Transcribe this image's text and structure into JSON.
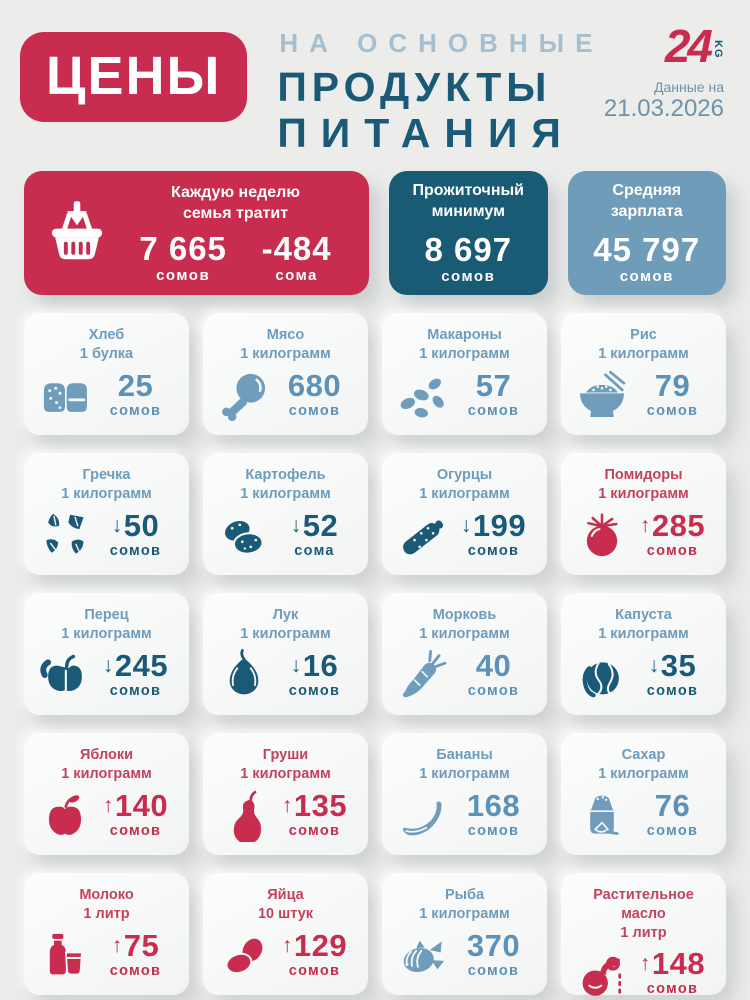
{
  "header": {
    "badge": "ЦЕНЫ",
    "line1": "НА ОСНОВНЫЕ",
    "line2": "ПРОДУКТЫ",
    "line3": "ПИТАНИЯ",
    "logo_number": "24",
    "logo_suffix": "KG",
    "date_label": "Данные на",
    "date_value": "21.03.2026"
  },
  "colors": {
    "red": "#c82c4e",
    "red_title": "#c4425e",
    "teal_dark": "#1b5a77",
    "steel_blue": "#6f9dbb",
    "salary_card": "#6f9cb8",
    "header_accent": "#a5bfd1",
    "page_bg": "#ecedeb"
  },
  "summary": {
    "weekly": {
      "icon": "basket-down-icon",
      "title_line1": "Каждую неделю",
      "title_line2": "семья тратит",
      "amount": "7 665",
      "amount_label": "сомов",
      "delta": "-484",
      "delta_label": "сома"
    },
    "minimum": {
      "title_line1": "Прожиточный",
      "title_line2": "минимум",
      "amount": "8 697",
      "label": "сомов"
    },
    "salary": {
      "title_line1": "Средняя",
      "title_line2": "зарплата",
      "amount": "45 797",
      "label": "сомов"
    }
  },
  "products": [
    {
      "name": "Хлеб",
      "qty": "1 булка",
      "price": "25",
      "unit": "сомов",
      "trend": "none",
      "icon": "bread-icon"
    },
    {
      "name": "Мясо",
      "qty": "1 килограмм",
      "price": "680",
      "unit": "сомов",
      "trend": "none",
      "icon": "meat-icon"
    },
    {
      "name": "Макароны",
      "qty": "1 килограмм",
      "price": "57",
      "unit": "сомов",
      "trend": "none",
      "icon": "pasta-icon"
    },
    {
      "name": "Рис",
      "qty": "1 килограмм",
      "price": "79",
      "unit": "сомов",
      "trend": "none",
      "icon": "rice-icon"
    },
    {
      "name": "Гречка",
      "qty": "1 килограмм",
      "price": "50",
      "unit": "сомов",
      "trend": "down",
      "icon": "buckwheat-icon"
    },
    {
      "name": "Картофель",
      "qty": "1 килограмм",
      "price": "52",
      "unit": "сома",
      "trend": "down",
      "icon": "potato-icon"
    },
    {
      "name": "Огурцы",
      "qty": "1 килограмм",
      "price": "199",
      "unit": "сомов",
      "trend": "down",
      "icon": "cucumber-icon"
    },
    {
      "name": "Помидоры",
      "qty": "1 килограмм",
      "price": "285",
      "unit": "сомов",
      "trend": "up",
      "icon": "tomato-icon"
    },
    {
      "name": "Перец",
      "qty": "1 килограмм",
      "price": "245",
      "unit": "сомов",
      "trend": "down",
      "icon": "pepper-icon"
    },
    {
      "name": "Лук",
      "qty": "1 килограмм",
      "price": "16",
      "unit": "сомов",
      "trend": "down",
      "icon": "onion-icon"
    },
    {
      "name": "Морковь",
      "qty": "1 килограмм",
      "price": "40",
      "unit": "сомов",
      "trend": "none",
      "icon": "carrot-icon"
    },
    {
      "name": "Капуста",
      "qty": "1 килограмм",
      "price": "35",
      "unit": "сомов",
      "trend": "down",
      "icon": "cabbage-icon"
    },
    {
      "name": "Яблоки",
      "qty": "1 килограмм",
      "price": "140",
      "unit": "сомов",
      "trend": "up",
      "icon": "apple-icon"
    },
    {
      "name": "Груши",
      "qty": "1 килограмм",
      "price": "135",
      "unit": "сомов",
      "trend": "up",
      "icon": "pear-icon"
    },
    {
      "name": "Бананы",
      "qty": "1 килограмм",
      "price": "168",
      "unit": "сомов",
      "trend": "none",
      "icon": "banana-icon"
    },
    {
      "name": "Сахар",
      "qty": "1 килограмм",
      "price": "76",
      "unit": "сомов",
      "trend": "none",
      "icon": "sugar-icon"
    },
    {
      "name": "Молоко",
      "qty": "1 литр",
      "price": "75",
      "unit": "сомов",
      "trend": "up",
      "icon": "milk-icon"
    },
    {
      "name": "Яйца",
      "qty": "10 штук",
      "price": "129",
      "unit": "сомов",
      "trend": "up",
      "icon": "eggs-icon"
    },
    {
      "name": "Рыба",
      "qty": "1 килограмм",
      "price": "370",
      "unit": "сомов",
      "trend": "none",
      "icon": "fish-icon"
    },
    {
      "name": "Растительное масло",
      "qty": "1 литр",
      "price": "148",
      "unit": "сомов",
      "trend": "up",
      "icon": "oil-icon"
    }
  ],
  "chart_data": {
    "type": "table",
    "title": "Цены на основные продукты питания",
    "date": "21.03.2026",
    "summary": {
      "weekly_family_spend_som": 7665,
      "weekly_change_som": -484,
      "subsistence_minimum_som": 8697,
      "average_salary_som": 45797
    },
    "items": [
      {
        "name": "Хлеб",
        "quantity": "1 булка",
        "price_som": 25,
        "trend": "none"
      },
      {
        "name": "Мясо",
        "quantity": "1 килограмм",
        "price_som": 680,
        "trend": "none"
      },
      {
        "name": "Макароны",
        "quantity": "1 килограмм",
        "price_som": 57,
        "trend": "none"
      },
      {
        "name": "Рис",
        "quantity": "1 килограмм",
        "price_som": 79,
        "trend": "none"
      },
      {
        "name": "Гречка",
        "quantity": "1 килограмм",
        "price_som": 50,
        "trend": "down"
      },
      {
        "name": "Картофель",
        "quantity": "1 килограмм",
        "price_som": 52,
        "trend": "down"
      },
      {
        "name": "Огурцы",
        "quantity": "1 килограмм",
        "price_som": 199,
        "trend": "down"
      },
      {
        "name": "Помидоры",
        "quantity": "1 килограмм",
        "price_som": 285,
        "trend": "up"
      },
      {
        "name": "Перец",
        "quantity": "1 килограмм",
        "price_som": 245,
        "trend": "down"
      },
      {
        "name": "Лук",
        "quantity": "1 килограмм",
        "price_som": 16,
        "trend": "down"
      },
      {
        "name": "Морковь",
        "quantity": "1 килограмм",
        "price_som": 40,
        "trend": "none"
      },
      {
        "name": "Капуста",
        "quantity": "1 килограмм",
        "price_som": 35,
        "trend": "down"
      },
      {
        "name": "Яблоки",
        "quantity": "1 килограмм",
        "price_som": 140,
        "trend": "up"
      },
      {
        "name": "Груши",
        "quantity": "1 килограмм",
        "price_som": 135,
        "trend": "up"
      },
      {
        "name": "Бананы",
        "quantity": "1 килограмм",
        "price_som": 168,
        "trend": "none"
      },
      {
        "name": "Сахар",
        "quantity": "1 килограмм",
        "price_som": 76,
        "trend": "none"
      },
      {
        "name": "Молоко",
        "quantity": "1 литр",
        "price_som": 75,
        "trend": "up"
      },
      {
        "name": "Яйца",
        "quantity": "10 штук",
        "price_som": 129,
        "trend": "up"
      },
      {
        "name": "Рыба",
        "quantity": "1 килограмм",
        "price_som": 370,
        "trend": "none"
      },
      {
        "name": "Растительное масло",
        "quantity": "1 литр",
        "price_som": 148,
        "trend": "up"
      }
    ]
  }
}
